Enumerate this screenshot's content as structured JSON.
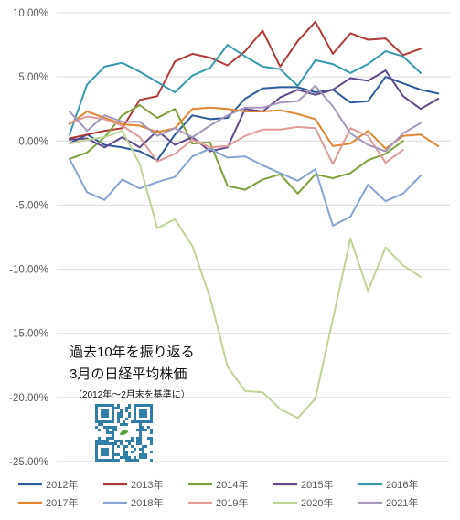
{
  "chart_data": {
    "type": "line",
    "x": [
      1,
      2,
      3,
      4,
      5,
      6,
      7,
      8,
      9,
      10,
      11,
      12,
      13,
      14,
      15,
      16,
      17,
      18,
      19,
      20,
      21,
      22
    ],
    "yticks": [
      "10.00%",
      "5.00%",
      "0.00%",
      "-5.00%",
      "-10.00%",
      "-15.00%",
      "-20.00%",
      "-25.00%"
    ],
    "ylim": [
      -25,
      10
    ],
    "grid": true,
    "legend_position": "bottom",
    "series": [
      {
        "name": "2012年",
        "color": "#2e5a9a",
        "values": [
          -0.2,
          0.5,
          -0.3,
          -0.5,
          -0.8,
          -1.5,
          0.5,
          2.0,
          1.7,
          1.8,
          3.3,
          4.1,
          4.2,
          4.2,
          3.8,
          4.0,
          3.0,
          3.1,
          5.0,
          4.5,
          4.0,
          3.7
        ]
      },
      {
        "name": "2013年",
        "color": "#b03a38",
        "values": [
          0.2,
          0.5,
          0.8,
          1.0,
          3.2,
          3.5,
          6.2,
          6.8,
          6.5,
          5.9,
          7.0,
          8.6,
          5.8,
          7.8,
          9.3,
          6.8,
          8.4,
          7.9,
          8.0,
          6.7,
          7.2,
          null
        ]
      },
      {
        "name": "2014年",
        "color": "#7ea03c",
        "values": [
          -1.4,
          -0.9,
          0.3,
          2.0,
          2.8,
          1.8,
          2.5,
          -0.2,
          -0.1,
          -3.5,
          -3.8,
          -3.0,
          -2.6,
          -4.1,
          -2.6,
          -2.9,
          -2.5,
          -1.5,
          -1.0,
          0.0,
          null,
          null
        ]
      },
      {
        "name": "2015年",
        "color": "#62498c",
        "values": [
          0.1,
          0.2,
          -0.5,
          0.3,
          -0.5,
          0.8,
          -0.3,
          0.3,
          -0.8,
          -0.5,
          2.5,
          2.3,
          3.4,
          4.0,
          3.6,
          4.0,
          4.9,
          4.7,
          5.5,
          3.5,
          2.5,
          3.3
        ]
      },
      {
        "name": "2016年",
        "color": "#3898ad",
        "values": [
          0.5,
          4.4,
          5.8,
          6.1,
          5.4,
          4.6,
          3.8,
          5.1,
          5.7,
          7.5,
          6.6,
          5.8,
          5.6,
          4.3,
          6.3,
          6.0,
          5.3,
          6.0,
          7.0,
          6.6,
          5.3,
          null
        ]
      },
      {
        "name": "2017年",
        "color": "#e08633",
        "values": [
          1.3,
          2.3,
          1.8,
          1.3,
          1.2,
          0.7,
          1.0,
          2.5,
          2.6,
          2.5,
          2.3,
          2.3,
          2.4,
          2.1,
          1.7,
          -0.4,
          -0.2,
          0.8,
          -0.6,
          0.4,
          0.5,
          -0.4
        ]
      },
      {
        "name": "2018年",
        "color": "#87a4d2",
        "values": [
          -1.4,
          -4.0,
          -4.6,
          -3.0,
          -3.7,
          -3.2,
          -2.8,
          -1.2,
          -0.6,
          -1.3,
          -1.2,
          -1.9,
          -2.5,
          -3.1,
          -2.2,
          -6.6,
          -5.9,
          -3.4,
          -4.7,
          -4.1,
          -2.7,
          null
        ]
      },
      {
        "name": "2019年",
        "color": "#de9b97",
        "values": [
          1.4,
          1.9,
          1.7,
          1.2,
          0.3,
          -1.6,
          -1.0,
          0.1,
          -0.5,
          -0.4,
          0.4,
          0.9,
          0.9,
          1.1,
          1.0,
          -1.8,
          1.0,
          0.4,
          -1.7,
          -0.7,
          null,
          null
        ]
      },
      {
        "name": "2020年",
        "color": "#bfd497",
        "values": [
          -0.2,
          0.1,
          0.3,
          0.8,
          -1.8,
          -6.8,
          -6.1,
          -8.2,
          -12.2,
          -17.6,
          -19.5,
          -19.6,
          -20.9,
          -21.6,
          -20.1,
          -13.9,
          -7.6,
          -11.7,
          -8.3,
          -9.7,
          -10.6,
          null
        ]
      },
      {
        "name": "2021年",
        "color": "#a797bb",
        "values": [
          2.3,
          0.8,
          2.0,
          1.5,
          1.5,
          0.4,
          1.0,
          0.3,
          1.2,
          2.0,
          2.6,
          2.6,
          3.0,
          3.1,
          4.3,
          2.7,
          0.6,
          -0.3,
          -0.8,
          0.6,
          1.4,
          null
        ]
      }
    ]
  },
  "annotation": {
    "title_line1": "過去10年を振り返る",
    "title_line2": "3月の日経平均株価",
    "subtitle": "（2012年～2月末を基準に）"
  }
}
